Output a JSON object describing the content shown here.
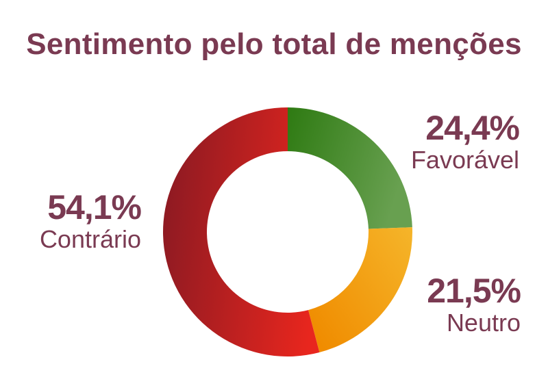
{
  "chart_data": {
    "type": "pie",
    "title": "Sentimento pelo total de menções",
    "donut": true,
    "slices": [
      {
        "label": "Favorável",
        "value": 24.4,
        "display": "24,4%",
        "color_start": "#2e7a12",
        "color_end": "#68a050"
      },
      {
        "label": "Neutro",
        "value": 21.5,
        "display": "21,5%",
        "color_start": "#f08c00",
        "color_end": "#f5b52a"
      },
      {
        "label": "Contrário",
        "value": 54.1,
        "display": "54,1%",
        "color_start": "#8e1a22",
        "color_end": "#e8261e"
      }
    ],
    "start_angle_deg": 0,
    "direction": "clockwise"
  },
  "colors": {
    "text": "#7a3a52"
  }
}
